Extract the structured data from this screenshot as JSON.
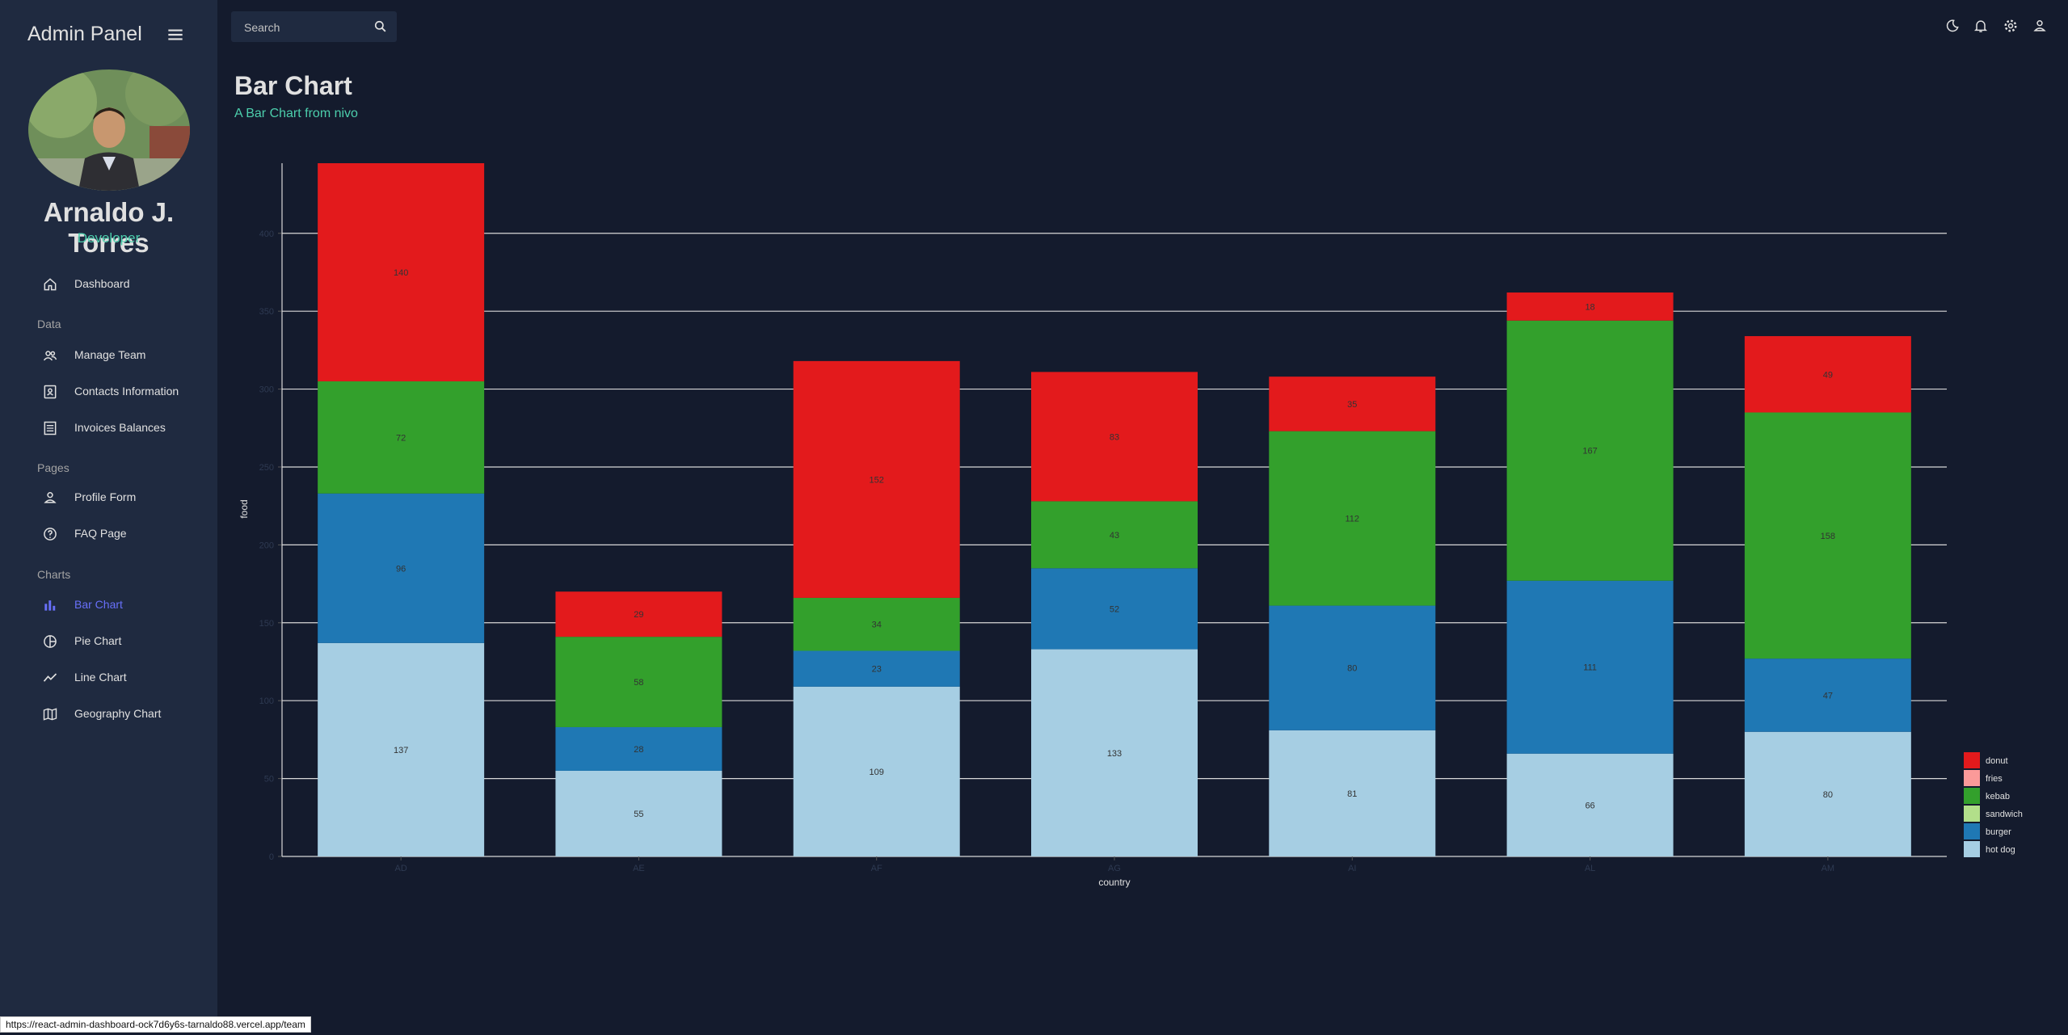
{
  "sidebar": {
    "brand": "Admin Panel",
    "user_name": "Arnaldo J. Torres",
    "user_role": "Developer",
    "sections": [
      "Data",
      "Pages",
      "Charts"
    ],
    "items": [
      {
        "label": "Dashboard",
        "icon": "home-icon"
      },
      {
        "label": "Manage Team",
        "icon": "people-icon"
      },
      {
        "label": "Contacts Information",
        "icon": "contacts-icon"
      },
      {
        "label": "Invoices Balances",
        "icon": "receipt-icon"
      },
      {
        "label": "Profile Form",
        "icon": "person-icon"
      },
      {
        "label": "FAQ Page",
        "icon": "help-icon"
      },
      {
        "label": "Bar Chart",
        "icon": "bar-chart-icon"
      },
      {
        "label": "Pie Chart",
        "icon": "pie-chart-icon"
      },
      {
        "label": "Line Chart",
        "icon": "timeline-icon"
      },
      {
        "label": "Geography Chart",
        "icon": "map-icon"
      }
    ],
    "active_item": "Bar Chart"
  },
  "topbar": {
    "search_placeholder": "Search",
    "icons": [
      "dark-mode-icon",
      "notifications-icon",
      "settings-icon",
      "person-icon"
    ]
  },
  "page": {
    "title": "Bar Chart",
    "subtitle": "A Bar Chart from nivo"
  },
  "status_url": "https://react-admin-dashboard-ock7d6y6s-tarnaldo88.vercel.app/team",
  "colors": {
    "background": "#141b2d",
    "sidebar": "#1f2a40",
    "accent_green": "#4cceac",
    "active_blue": "#6870fa",
    "hot_dog": "#a6cee3",
    "burger": "#1f78b4",
    "sandwich": "#b2df8a",
    "kebab": "#33a02c",
    "fries": "#fb9a99",
    "donut": "#e31a1c"
  },
  "chart_data": {
    "type": "bar",
    "stacked": true,
    "categories": [
      "AD",
      "AE",
      "AF",
      "AG",
      "AI",
      "AL",
      "AM"
    ],
    "series": [
      {
        "name": "hot dog",
        "values": [
          137,
          55,
          109,
          133,
          81,
          66,
          80
        ]
      },
      {
        "name": "burger",
        "values": [
          96,
          28,
          23,
          52,
          80,
          111,
          47
        ]
      },
      {
        "name": "kebab",
        "values": [
          72,
          58,
          34,
          43,
          112,
          167,
          158
        ]
      },
      {
        "name": "donut",
        "values": [
          140,
          29,
          152,
          83,
          35,
          18,
          49
        ]
      }
    ],
    "legend": [
      "donut",
      "fries",
      "kebab",
      "sandwich",
      "burger",
      "hot dog"
    ],
    "legend_position": "right",
    "xlabel": "country",
    "ylabel": "food",
    "ylim": [
      0,
      445
    ],
    "yticks": [
      0,
      50,
      100,
      150,
      200,
      250,
      300,
      350,
      400
    ],
    "grid": true
  }
}
